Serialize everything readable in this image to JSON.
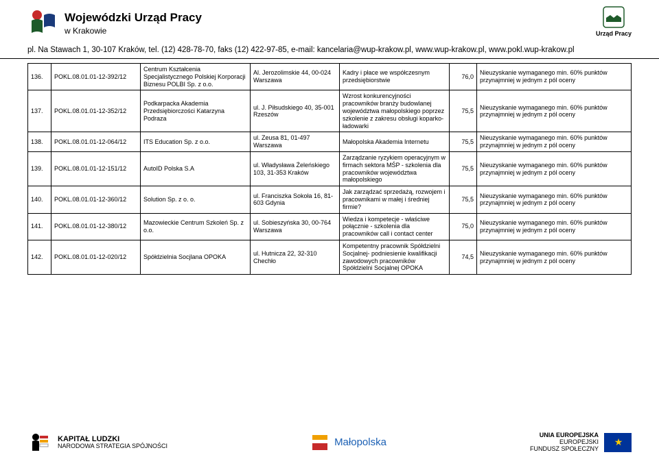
{
  "header": {
    "title": "Wojewódzki Urząd Pracy",
    "subtitle": "w Krakowie",
    "right_label": "Urząd Pracy"
  },
  "contact": "pl. Na Stawach 1, 30-107 Kraków, tel. (12) 428-78-70, faks (12) 422-97-85, e-mail: kancelaria@wup-krakow.pl,  www.wup-krakow.pl, www.pokl.wup-krakow.pl",
  "rows": [
    {
      "n": "136.",
      "id": "POKL.08.01.01-12-392/12",
      "org": "Centrum Kształcenia Specjalistycznego Polskiej Korporacji Biznesu POLBI Sp. z o.o.",
      "addr": "Al. Jerozolimskie 44,  00-024 Warszawa",
      "proj": "Kadry i płace we współczesnym przedsiębiorstwie",
      "score": "76,0",
      "result": "Nieuzyskanie wymaganego min. 60% punktów przynajmniej w jednym z pól oceny"
    },
    {
      "n": "137.",
      "id": "POKL.08.01.01-12-352/12",
      "org": "Podkarpacka Akademia Przedsiębiorczości Katarzyna Podraza",
      "addr": "ul. J. Piłsudskiego 40, 35-001 Rzeszów",
      "proj": "Wzrost konkurencyjności pracowników branży budowlanej województwa małopolskiego poprzez szkolenie z zakresu obsługi koparko-ładowarki",
      "score": "75,5",
      "result": "Nieuzyskanie wymaganego min. 60% punktów przynajmniej w jednym z pól oceny"
    },
    {
      "n": "138.",
      "id": "POKL.08.01.01-12-064/12",
      "org": "ITS Education Sp. z o.o.",
      "addr": "ul. Zeusa 81,  01-497 Warszawa",
      "proj": "Małopolska Akademia Internetu",
      "score": "75,5",
      "result": "Nieuzyskanie wymaganego min. 60% punktów przynajmniej w jednym z pól oceny"
    },
    {
      "n": "139.",
      "id": "POKL.08.01.01-12-151/12",
      "org": "AutoID Polska S.A",
      "addr": "ul. Władysława Żeleńskiego 103,  31-353 Kraków",
      "proj": "Zarządzanie ryzykiem operacyjnym w firmach sektora MŚP - szkolenia dla pracowników województwa małopolskiego",
      "score": "75,5",
      "result": "Nieuzyskanie wymaganego min. 60% punktów przynajmniej w jednym z pól oceny"
    },
    {
      "n": "140.",
      "id": "POKL.08.01.01-12-360/12",
      "org": "Solution Sp. z o. o.",
      "addr": "ul. Franciszka Sokoła 16, 81-603 Gdynia",
      "proj": "Jak zarządzać sprzedażą, rozwojem i pracownikami w małej i średniej firmie?",
      "score": "75,5",
      "result": "Nieuzyskanie wymaganego min. 60% punktów przynajmniej w jednym z pól oceny"
    },
    {
      "n": "141.",
      "id": "POKL.08.01.01-12-380/12",
      "org": "Mazowieckie Centrum Szkoleń Sp. z o.o.",
      "addr": "ul. Sobieszyńska 30,  00-764 Warszawa",
      "proj": "Wiedza i kompetecje - właściwe połącznie - szkolenia dla pracowników call i contact center",
      "score": "75,0",
      "result": "Nieuzyskanie wymaganego min. 60% punktów przynajmniej w jednym z pól oceny"
    },
    {
      "n": "142.",
      "id": "POKL.08.01.01-12-020/12",
      "org": "Spółdzielnia Socjlana OPOKA",
      "addr": "ul. Hutnicza 22,  32-310 Chechło",
      "proj": "Kompetentny pracownik Spółdzielni Socjalnej- podniesienie kwalifikacji zawodowych pracowników Spółdzielni Socjalnej OPOKA",
      "score": "74,5",
      "result": "Nieuzyskanie wymaganego min. 60% punktów przynajmniej w jednym z pól oceny"
    }
  ],
  "footer": {
    "left_title": "KAPITAŁ LUDZKI",
    "left_sub": "NARODOWA STRATEGIA SPÓJNOŚCI",
    "center": "Małopolska",
    "right_title": "UNIA EUROPEJSKA",
    "right_sub1": "EUROPEJSKI",
    "right_sub2": "FUNDUSZ SPOŁECZNY"
  }
}
